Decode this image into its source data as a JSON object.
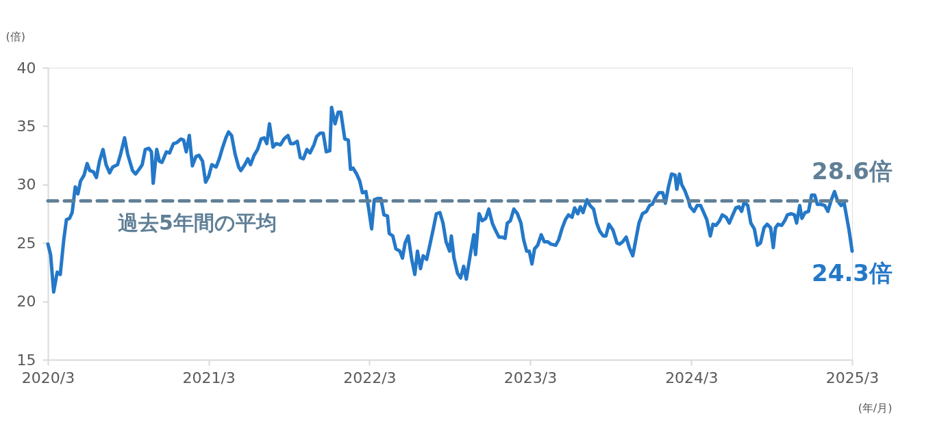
{
  "chart_data": {
    "type": "line",
    "ylabel": "(倍)",
    "xlabel": "(年/月)",
    "x": [
      "2020-03-01",
      "2020-03-07",
      "2020-03-14",
      "2020-03-22",
      "2020-03-29",
      "2020-04-06",
      "2020-04-12",
      "2020-04-19",
      "2020-04-25",
      "2020-05-02",
      "2020-05-08",
      "2020-05-14",
      "2020-05-22",
      "2020-05-29",
      "2020-06-04",
      "2020-06-12",
      "2020-06-19",
      "2020-06-26",
      "2020-07-04",
      "2020-07-11",
      "2020-07-19",
      "2020-07-26",
      "2020-08-06",
      "2020-08-13",
      "2020-08-22",
      "2020-08-29",
      "2020-09-09",
      "2020-09-16",
      "2020-09-24",
      "2020-10-01",
      "2020-10-08",
      "2020-10-16",
      "2020-10-22",
      "2020-10-26",
      "2020-11-03",
      "2020-11-09",
      "2020-11-15",
      "2020-11-25",
      "2020-12-02",
      "2020-12-11",
      "2020-12-19",
      "2020-12-28",
      "2021-01-03",
      "2021-01-09",
      "2021-01-16",
      "2021-01-23",
      "2021-01-31",
      "2021-02-07",
      "2021-02-15",
      "2021-02-22",
      "2021-03-01",
      "2021-03-08",
      "2021-03-18",
      "2021-03-25",
      "2021-04-01",
      "2021-04-09",
      "2021-04-15",
      "2021-04-22",
      "2021-04-30",
      "2021-05-08",
      "2021-05-13",
      "2021-05-22",
      "2021-05-29",
      "2021-06-04",
      "2021-06-12",
      "2021-06-20",
      "2021-06-28",
      "2021-07-05",
      "2021-07-11",
      "2021-07-17",
      "2021-07-25",
      "2021-08-01",
      "2021-08-11",
      "2021-08-19",
      "2021-08-28",
      "2021-09-03",
      "2021-09-10",
      "2021-09-18",
      "2021-09-25",
      "2021-10-02",
      "2021-10-10",
      "2021-10-17",
      "2021-10-26",
      "2021-11-01",
      "2021-11-09",
      "2021-11-16",
      "2021-11-23",
      "2021-12-01",
      "2021-12-05",
      "2021-12-13",
      "2021-12-20",
      "2021-12-26",
      "2022-01-04",
      "2022-01-12",
      "2022-01-17",
      "2022-01-23",
      "2022-01-31",
      "2022-02-07",
      "2022-02-13",
      "2022-02-21",
      "2022-02-27",
      "2022-03-06",
      "2022-03-12",
      "2022-03-19",
      "2022-03-27",
      "2022-04-03",
      "2022-04-11",
      "2022-04-15",
      "2022-04-23",
      "2022-04-30",
      "2022-05-09",
      "2022-05-15",
      "2022-05-21",
      "2022-05-28",
      "2022-06-05",
      "2022-06-12",
      "2022-06-18",
      "2022-06-25",
      "2022-07-01",
      "2022-07-09",
      "2022-07-16",
      "2022-07-24",
      "2022-07-31",
      "2022-08-08",
      "2022-08-15",
      "2022-08-22",
      "2022-08-30",
      "2022-09-03",
      "2022-09-09",
      "2022-09-17",
      "2022-09-24",
      "2022-10-01",
      "2022-10-07",
      "2022-10-16",
      "2022-10-24",
      "2022-10-28",
      "2022-11-05",
      "2022-11-12",
      "2022-11-20",
      "2022-11-27",
      "2022-12-05",
      "2022-12-12",
      "2022-12-20",
      "2022-12-27",
      "2023-01-03",
      "2023-01-08",
      "2023-01-15",
      "2023-01-23",
      "2023-01-31",
      "2023-02-08",
      "2023-02-14",
      "2023-02-21",
      "2023-02-27",
      "2023-03-05",
      "2023-03-11",
      "2023-03-18",
      "2023-03-26",
      "2023-04-02",
      "2023-04-10",
      "2023-04-17",
      "2023-04-28",
      "2023-05-05",
      "2023-05-12",
      "2023-05-20",
      "2023-05-27",
      "2023-06-04",
      "2023-06-10",
      "2023-06-17",
      "2023-06-23",
      "2023-06-29",
      "2023-07-08",
      "2023-07-15",
      "2023-07-23",
      "2023-07-30",
      "2023-08-06",
      "2023-08-14",
      "2023-08-20",
      "2023-08-27",
      "2023-09-05",
      "2023-09-14",
      "2023-09-20",
      "2023-09-27",
      "2023-10-05",
      "2023-10-12",
      "2023-10-20",
      "2023-10-27",
      "2023-11-03",
      "2023-11-11",
      "2023-11-20",
      "2023-11-27",
      "2023-12-03",
      "2023-12-11",
      "2023-12-18",
      "2023-12-27",
      "2024-01-02",
      "2024-01-09",
      "2024-01-16",
      "2024-01-24",
      "2024-01-28",
      "2024-02-03",
      "2024-02-08",
      "2024-02-15",
      "2024-02-23",
      "2024-02-27",
      "2024-03-07",
      "2024-03-14",
      "2024-03-22",
      "2024-03-29",
      "2024-04-05",
      "2024-04-13",
      "2024-04-19",
      "2024-04-26",
      "2024-05-04",
      "2024-05-10",
      "2024-05-19",
      "2024-05-26",
      "2024-06-03",
      "2024-06-10",
      "2024-06-17",
      "2024-06-23",
      "2024-06-29",
      "2024-07-07",
      "2024-07-14",
      "2024-07-22",
      "2024-07-29",
      "2024-08-05",
      "2024-08-13",
      "2024-08-20",
      "2024-08-28",
      "2024-09-03",
      "2024-09-08",
      "2024-09-14",
      "2024-09-22",
      "2024-09-29",
      "2024-10-05",
      "2024-10-14",
      "2024-10-21",
      "2024-10-26",
      "2024-11-02",
      "2024-11-07",
      "2024-11-14",
      "2024-11-22",
      "2024-11-29",
      "2024-12-06",
      "2024-12-12",
      "2024-12-21",
      "2024-12-29",
      "2025-01-05",
      "2025-01-12",
      "2025-01-20",
      "2025-01-27",
      "2025-02-04",
      "2025-02-11",
      "2025-02-22",
      "2025-03-01"
    ],
    "series": [
      {
        "color": "#2478c8",
        "values": [
          24.9,
          24.0,
          20.8,
          22.5,
          22.3,
          25.3,
          27.0,
          27.1,
          27.6,
          29.8,
          29.2,
          30.3,
          30.8,
          31.8,
          31.2,
          31.1,
          30.6,
          32.0,
          33.0,
          31.7,
          31.0,
          31.5,
          31.7,
          32.6,
          34.0,
          32.6,
          31.2,
          30.9,
          31.3,
          31.7,
          33.0,
          33.1,
          32.8,
          30.1,
          33.0,
          32.0,
          31.9,
          32.8,
          32.7,
          33.5,
          33.6,
          33.9,
          33.8,
          32.8,
          34.2,
          31.6,
          32.4,
          32.5,
          32.0,
          30.2,
          30.7,
          31.7,
          31.5,
          32.2,
          33.1,
          34.0,
          34.5,
          34.2,
          32.6,
          31.5,
          31.2,
          31.7,
          32.2,
          31.7,
          32.5,
          33.0,
          33.9,
          34.0,
          33.5,
          35.2,
          33.2,
          33.5,
          33.4,
          33.9,
          34.2,
          33.5,
          33.5,
          33.7,
          32.3,
          32.2,
          33.0,
          32.7,
          33.4,
          34.1,
          34.4,
          34.4,
          32.8,
          32.9,
          36.6,
          35.2,
          36.2,
          36.2,
          33.9,
          33.8,
          31.3,
          31.4,
          30.9,
          30.3,
          29.3,
          29.4,
          28.0,
          26.2,
          28.7,
          28.8,
          28.8,
          27.4,
          27.3,
          25.8,
          25.6,
          24.5,
          24.3,
          23.7,
          25.0,
          25.6,
          23.6,
          22.3,
          24.3,
          22.8,
          23.9,
          23.6,
          24.8,
          26.2,
          27.5,
          27.6,
          26.7,
          25.1,
          24.3,
          25.6,
          23.7,
          22.4,
          22.0,
          23.0,
          21.9,
          24.0,
          25.7,
          24.0,
          27.5,
          26.9,
          27.1,
          27.9,
          26.7,
          26.1,
          25.5,
          25.5,
          25.4,
          26.7,
          26.9,
          27.9,
          27.5,
          26.7,
          25.3,
          24.3,
          24.3,
          23.2,
          24.5,
          24.8,
          25.7,
          25.1,
          25.1,
          24.9,
          24.8,
          25.3,
          26.2,
          27.0,
          27.4,
          27.2,
          28.0,
          27.5,
          28.1,
          27.6,
          28.7,
          28.2,
          27.9,
          26.7,
          26.0,
          25.6,
          25.6,
          26.6,
          26.1,
          25.0,
          24.9,
          25.1,
          25.5,
          24.6,
          23.9,
          25.3,
          26.7,
          27.5,
          27.7,
          28.2,
          28.3,
          28.9,
          29.3,
          29.3,
          28.4,
          29.8,
          30.9,
          30.8,
          29.6,
          30.9,
          30.0,
          29.5,
          28.7,
          28.1,
          27.7,
          28.2,
          28.2,
          27.6,
          27.0,
          25.6,
          26.6,
          26.5,
          26.9,
          27.4,
          27.2,
          26.7,
          27.4,
          28.0,
          28.1,
          27.7,
          28.5,
          28.2,
          26.7,
          26.2,
          24.8,
          25.0,
          26.3,
          26.6,
          26.3,
          24.6,
          26.3,
          26.6,
          26.5,
          26.9,
          27.4,
          27.5,
          27.4,
          26.7,
          28.2,
          27.1,
          27.6,
          27.7,
          29.1,
          29.1,
          28.3,
          28.3,
          28.2,
          27.7,
          28.6,
          29.4,
          28.6,
          28.2,
          28.4,
          26.1,
          24.3
        ]
      }
    ],
    "xlim": [
      "2020-03-01",
      "2025-03-01"
    ],
    "xticks": [
      {
        "value": "2020-03-01",
        "label": "2020/3"
      },
      {
        "value": "2021-03-01",
        "label": "2021/3"
      },
      {
        "value": "2022-03-01",
        "label": "2022/3"
      },
      {
        "value": "2023-03-01",
        "label": "2023/3"
      },
      {
        "value": "2024-03-01",
        "label": "2024/3"
      },
      {
        "value": "2025-03-01",
        "label": "2025/3"
      }
    ],
    "ylim": [
      15,
      40
    ],
    "yticks": [
      15,
      20,
      25,
      30,
      35,
      40
    ],
    "grid": false,
    "marker": "none",
    "line_style": "solid",
    "ref_lines": [
      {
        "axis": "y",
        "value": 28.6,
        "label": "28.6倍",
        "color": "#5f7f96",
        "line_style": "dashed"
      }
    ],
    "annotations": [
      "過去5年間の平均",
      {
        "text": "24.3倍",
        "x": "2025-03-01",
        "y": 24.3
      }
    ]
  }
}
